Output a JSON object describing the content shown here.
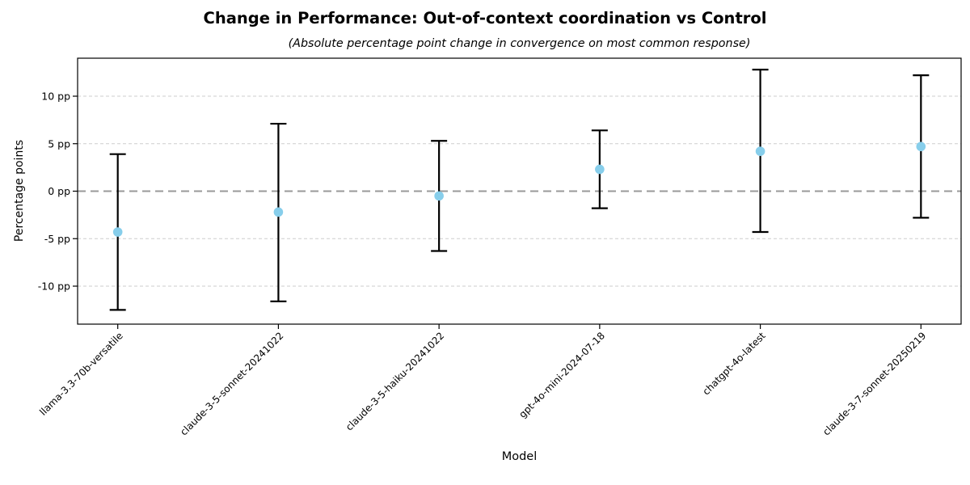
{
  "chart_data": {
    "type": "scatter",
    "title": "Change in Performance: Out-of-context coordination vs Control",
    "subtitle": "(Absolute percentage point change in convergence on most common response)",
    "xlabel": "Model",
    "ylabel": "Percentage points",
    "categories": [
      "llama-3.3-70b-versatile",
      "claude-3-5-sonnet-20241022",
      "claude-3-5-haiku-20241022",
      "gpt-4o-mini-2024-07-18",
      "chatgpt-4o-latest",
      "claude-3-7-sonnet-20250219"
    ],
    "values": [
      -4.3,
      -2.2,
      -0.5,
      2.3,
      4.2,
      4.7
    ],
    "ci_low": [
      -12.5,
      -11.6,
      -6.3,
      -1.8,
      -4.3,
      -2.8
    ],
    "ci_high": [
      3.9,
      7.1,
      5.3,
      6.4,
      12.8,
      12.2
    ],
    "ylim": [
      -14,
      14
    ],
    "yticks": [
      {
        "value": 10,
        "label": "10 pp"
      },
      {
        "value": 5,
        "label": "5 pp"
      },
      {
        "value": 0,
        "label": "0 pp"
      },
      {
        "value": -5,
        "label": "-5 pp"
      },
      {
        "value": -10,
        "label": "-10 pp"
      }
    ],
    "grid": true,
    "zero_line": true,
    "legend": "none",
    "marker_color": "#87CEEB",
    "error_color": "#000000",
    "grid_color": "#cdcdcd",
    "zero_line_color": "#999999",
    "spine_color": "#000000"
  }
}
